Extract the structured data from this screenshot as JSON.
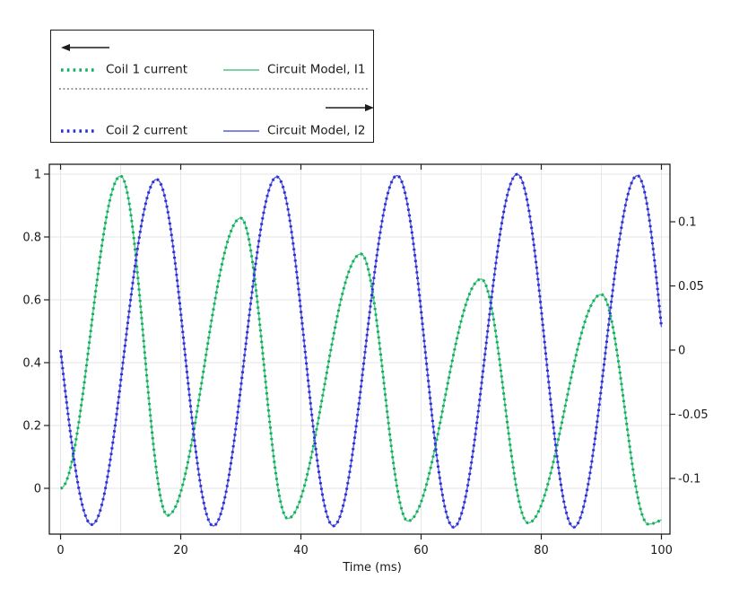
{
  "figure": {
    "xlabel": "Time (ms)"
  },
  "legend": {
    "rows": [
      {
        "marker_label": "Coil 1 current",
        "line_label": "Circuit Model, I1"
      },
      {
        "marker_label": "Coil 2 current",
        "line_label": "Circuit Model, I2"
      }
    ]
  },
  "colors": {
    "coil1_marker": "#0fae5c",
    "model1_line": "#50c689",
    "coil2_marker": "#2a2ed6",
    "model2_line": "#585ce0",
    "grid": "#e6e6e6",
    "axis": "#1f1f1f",
    "text": "#1a1a1a"
  },
  "chart_data": {
    "type": "line",
    "title": "",
    "xlabel": "Time (ms)",
    "grid": true,
    "legend_position": "outside-top-left",
    "x_axis": {
      "range": [
        -1.87,
        101.42
      ],
      "ticks": [
        0,
        20,
        40,
        60,
        80,
        100
      ],
      "tick_labels": [
        "0",
        "20",
        "40",
        "60",
        "80",
        "100"
      ],
      "gridlines": [
        0,
        10,
        20,
        30,
        40,
        50,
        60,
        70,
        80,
        90,
        100
      ]
    },
    "left_axis": {
      "range": [
        -0.1457,
        1.0314
      ],
      "ticks": [
        0,
        0.2,
        0.4,
        0.6,
        0.8,
        1
      ],
      "tick_labels": [
        "0",
        "0.2",
        "0.4",
        "0.6",
        "0.8",
        "1"
      ],
      "gridlines": [
        0,
        0.2,
        0.4,
        0.6,
        0.8,
        1
      ]
    },
    "right_axis": {
      "range": [
        -0.1434,
        0.1448
      ],
      "ticks": [
        -0.1,
        -0.05,
        0,
        0.05,
        0.1
      ],
      "tick_labels": [
        "-0.1",
        "-0.05",
        "0",
        "0.05",
        "0.1"
      ]
    },
    "series": [
      {
        "id": "I1",
        "marker_series": "Coil 1 current",
        "line_series": "Circuit Model, I1",
        "axis": "left",
        "exit": "accelerate",
        "keypoints": [
          [
            0,
            0.0
          ],
          [
            10,
            0.994
          ],
          [
            17.8,
            -0.086
          ],
          [
            30,
            0.86
          ],
          [
            37.8,
            -0.096
          ],
          [
            50,
            0.746
          ],
          [
            57.8,
            -0.104
          ],
          [
            70,
            0.666
          ],
          [
            77.8,
            -0.11
          ],
          [
            90,
            0.617
          ],
          [
            97.8,
            -0.114
          ],
          [
            100,
            -0.1
          ]
        ]
      },
      {
        "id": "I2",
        "marker_series": "Coil 2 current",
        "line_series": "Circuit Model, I2",
        "axis": "right",
        "entry": "steep",
        "exit": "accelerate",
        "keypoints": [
          [
            0,
            0.0
          ],
          [
            5.2,
            -0.136
          ],
          [
            16,
            0.133
          ],
          [
            25.4,
            -0.137
          ],
          [
            36,
            0.135
          ],
          [
            45.4,
            -0.137
          ],
          [
            56,
            0.136
          ],
          [
            65.4,
            -0.138
          ],
          [
            76,
            0.137
          ],
          [
            85.4,
            -0.138
          ],
          [
            96,
            0.136
          ],
          [
            100,
            0.018
          ]
        ]
      }
    ]
  }
}
